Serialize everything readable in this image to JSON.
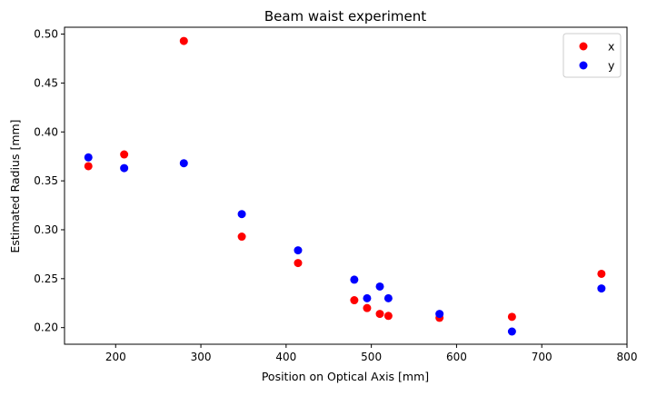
{
  "chart_data": {
    "type": "scatter",
    "title": "Beam waist experiment",
    "xlabel": "Position on Optical Axis [mm]",
    "ylabel": "Estimated Radius [mm]",
    "xlim": [
      140,
      800
    ],
    "ylim": [
      0.183,
      0.507
    ],
    "xticks": [
      200,
      300,
      400,
      500,
      600,
      700,
      800
    ],
    "yticks": [
      0.2,
      0.25,
      0.3,
      0.35,
      0.4,
      0.45,
      0.5
    ],
    "xtick_labels": [
      "200",
      "300",
      "400",
      "500",
      "600",
      "700",
      "800"
    ],
    "ytick_labels": [
      "0.20",
      "0.25",
      "0.30",
      "0.35",
      "0.40",
      "0.45",
      "0.50"
    ],
    "grid": false,
    "legend_position": "top-right",
    "series": [
      {
        "name": "x",
        "color": "#ff0000",
        "points": [
          [
            168,
            0.365
          ],
          [
            210,
            0.377
          ],
          [
            280,
            0.493
          ],
          [
            348,
            0.293
          ],
          [
            414,
            0.266
          ],
          [
            480,
            0.228
          ],
          [
            495,
            0.22
          ],
          [
            510,
            0.214
          ],
          [
            520,
            0.212
          ],
          [
            580,
            0.21
          ],
          [
            665,
            0.211
          ],
          [
            770,
            0.255
          ]
        ]
      },
      {
        "name": "y",
        "color": "#0000ff",
        "points": [
          [
            168,
            0.374
          ],
          [
            210,
            0.363
          ],
          [
            280,
            0.368
          ],
          [
            348,
            0.316
          ],
          [
            414,
            0.279
          ],
          [
            480,
            0.249
          ],
          [
            495,
            0.23
          ],
          [
            510,
            0.242
          ],
          [
            520,
            0.23
          ],
          [
            580,
            0.214
          ],
          [
            665,
            0.196
          ],
          [
            770,
            0.24
          ]
        ]
      }
    ]
  }
}
